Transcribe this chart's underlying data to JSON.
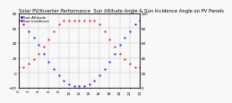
{
  "title": "Solar PV/Inverter Performance  Sun Altitude Angle & Sun Incidence Angle on PV Panels",
  "background_color": "#f8f8f8",
  "grid_color": "#bbbbbb",
  "x_values": [
    0,
    1,
    2,
    3,
    4,
    5,
    6,
    7,
    8,
    9,
    10,
    11,
    12,
    13,
    14,
    15,
    16,
    17,
    18,
    19,
    20,
    21,
    22,
    23,
    24
  ],
  "sun_altitude": [
    70,
    65,
    56,
    47,
    37,
    26,
    15,
    5,
    -3,
    -10,
    -15,
    -18,
    -18,
    -18,
    -15,
    -10,
    -3,
    5,
    15,
    26,
    37,
    47,
    56,
    65,
    70
  ],
  "incidence_angle": [
    27,
    28,
    32,
    38,
    45,
    55,
    65,
    75,
    85,
    90,
    90,
    90,
    90,
    90,
    90,
    90,
    85,
    75,
    65,
    55,
    45,
    38,
    32,
    28,
    27
  ],
  "altitude_color": "#0000dd",
  "incidence_color": "#dd0000",
  "ylim_left": [
    -20,
    80
  ],
  "ylim_right": [
    0,
    100
  ],
  "xlim": [
    0,
    24
  ],
  "xticks": [
    0,
    2,
    4,
    6,
    8,
    10,
    12,
    14,
    16,
    18,
    20,
    22,
    24
  ],
  "yticks_left": [
    -20,
    0,
    20,
    40,
    60,
    80
  ],
  "yticks_right": [
    0,
    20,
    40,
    60,
    80,
    100
  ],
  "title_fontsize": 3.8,
  "tick_fontsize": 3.0,
  "legend_labels": [
    "Sun Altitude",
    "Sun Incidence"
  ],
  "legend_fontsize": 3.0,
  "marker_size": 1.0
}
